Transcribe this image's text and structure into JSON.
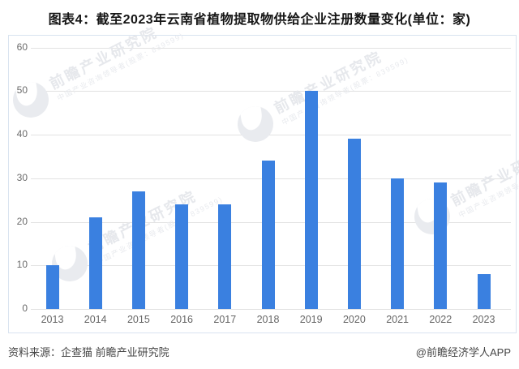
{
  "title": "图表4：截至2023年云南省植物提取物供给企业注册数量变化(单位：家)",
  "footer": {
    "source": "资料来源：企查猫 前瞻产业研究院",
    "credit": "@前瞻经济学人APP"
  },
  "watermark": {
    "brand": "前瞻产业研究院",
    "tagline": "中国产业咨询领导者(股票：839599)"
  },
  "colors": {
    "bar": "#3a80e0",
    "grid": "#e2e2e2",
    "axis_text": "#6b6b6b",
    "frame_border": "#d9e3f0",
    "title_text": "#151515",
    "footer_text": "#454545",
    "watermark_text": "#e6e8ec"
  },
  "chart_data": {
    "type": "bar",
    "categories": [
      "2013",
      "2014",
      "2015",
      "2016",
      "2017",
      "2018",
      "2019",
      "2020",
      "2021",
      "2022",
      "2023"
    ],
    "values": [
      10,
      21,
      27,
      24,
      24,
      34,
      50,
      39,
      30,
      29,
      8
    ],
    "title": "图表4：截至2023年云南省植物提取物供给企业注册数量变化(单位：家)",
    "xlabel": "",
    "ylabel": "",
    "ylim": [
      0,
      60
    ],
    "yticks": [
      0,
      10,
      20,
      30,
      40,
      50,
      60
    ],
    "grid": true,
    "legend_position": "none"
  }
}
